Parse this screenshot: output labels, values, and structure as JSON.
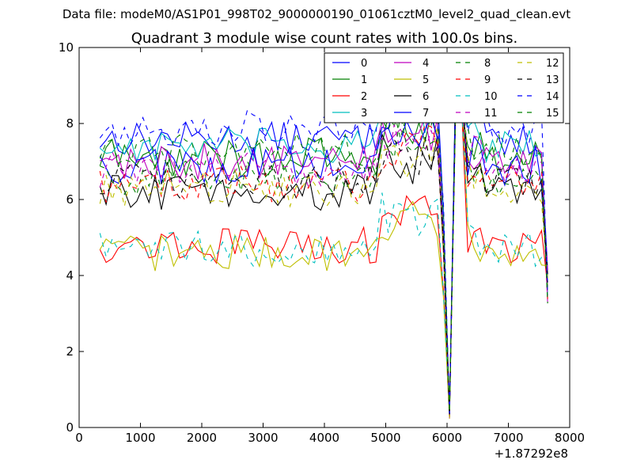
{
  "figure": {
    "suptitle": "Data file: modeM0/AS1P01_998T02_9000000190_01061cztM0_level2_quad_clean.evt"
  },
  "chart_data": {
    "type": "line",
    "title": "Quadrant 3 module wise count rates with 100.0s bins.",
    "xlabel": "",
    "ylabel": "",
    "x_offset_label": "+1.87292e8",
    "xlim": [
      0,
      8000
    ],
    "ylim": [
      0,
      10
    ],
    "x_ticks": [
      0,
      1000,
      2000,
      3000,
      4000,
      5000,
      6000,
      7000,
      8000
    ],
    "y_ticks": [
      0,
      2,
      4,
      6,
      8,
      10
    ],
    "grid": false,
    "legend_placement": "top-right",
    "legend_columns": 4,
    "bin_start": 340,
    "bin_step": 100,
    "bin_count": 74,
    "dip_bins": [
      {
        "x": 6040,
        "value": 0.2
      }
    ],
    "series": [
      {
        "name": "0",
        "color": "#0000ff",
        "dash": "solid",
        "base": 7.6,
        "spread": 0.28
      },
      {
        "name": "1",
        "color": "#008000",
        "dash": "solid",
        "base": 7.1,
        "spread": 0.35
      },
      {
        "name": "2",
        "color": "#ff0000",
        "dash": "solid",
        "base": 4.8,
        "spread": 0.3
      },
      {
        "name": "3",
        "color": "#00bfbf",
        "dash": "solid",
        "base": 7.4,
        "spread": 0.3
      },
      {
        "name": "4",
        "color": "#bf00bf",
        "dash": "solid",
        "base": 7.0,
        "spread": 0.3
      },
      {
        "name": "5",
        "color": "#bfbf00",
        "dash": "solid",
        "base": 4.6,
        "spread": 0.3
      },
      {
        "name": "6",
        "color": "#000000",
        "dash": "solid",
        "base": 6.2,
        "spread": 0.3
      },
      {
        "name": "7",
        "color": "#0000ff",
        "dash": "solid",
        "base": 6.9,
        "spread": 0.35
      },
      {
        "name": "8",
        "color": "#008000",
        "dash": "dashed",
        "base": 6.6,
        "spread": 0.3
      },
      {
        "name": "9",
        "color": "#ff0000",
        "dash": "dashed",
        "base": 6.4,
        "spread": 0.3
      },
      {
        "name": "10",
        "color": "#00bfbf",
        "dash": "dashed",
        "base": 4.7,
        "spread": 0.3
      },
      {
        "name": "11",
        "color": "#bf00bf",
        "dash": "dashed",
        "base": 6.8,
        "spread": 0.3
      },
      {
        "name": "12",
        "color": "#bfbf00",
        "dash": "dashed",
        "base": 6.3,
        "spread": 0.3
      },
      {
        "name": "13",
        "color": "#000000",
        "dash": "dashed",
        "base": 6.5,
        "spread": 0.3
      },
      {
        "name": "14",
        "color": "#0000ff",
        "dash": "dashed",
        "base": 7.9,
        "spread": 0.3
      },
      {
        "name": "15",
        "color": "#008000",
        "dash": "dashed",
        "base": 7.3,
        "spread": 0.3
      }
    ]
  }
}
